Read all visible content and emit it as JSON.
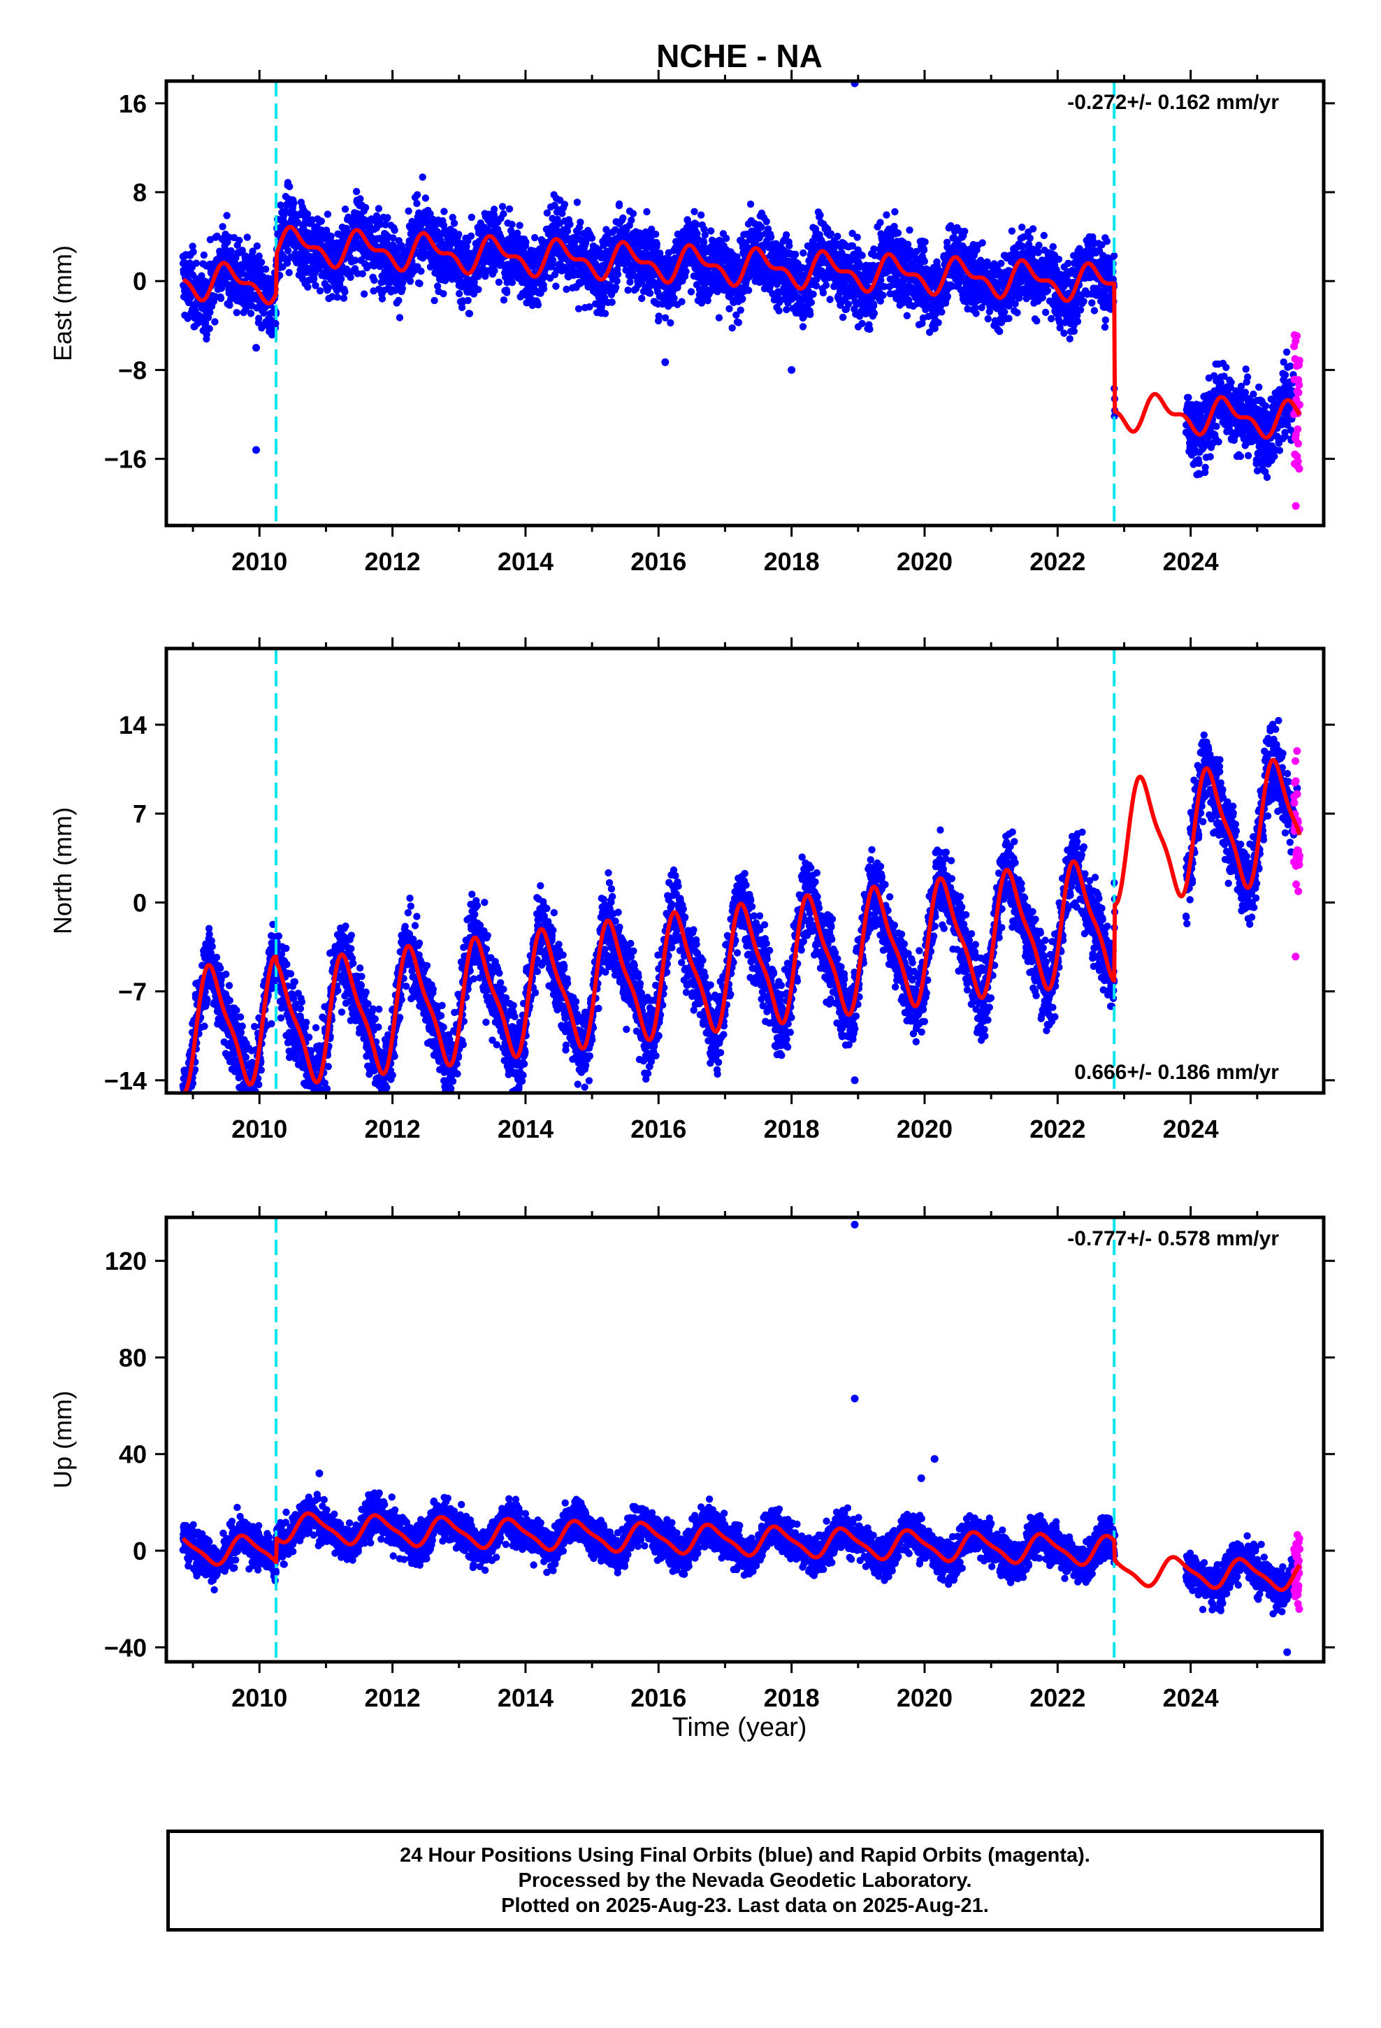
{
  "chart_data": {
    "type": "scatter",
    "title": "NCHE - NA",
    "xlabel": "Time (year)",
    "xlim": [
      2008.6,
      2026.0
    ],
    "xticks": [
      2010,
      2012,
      2014,
      2016,
      2018,
      2020,
      2022,
      2024
    ],
    "discontinuities": [
      2010.25,
      2022.85
    ],
    "last_final_orbit_year": 2025.55,
    "last_data_year": 2025.64,
    "colors": {
      "final": "#0000ff",
      "rapid": "#ff00ff",
      "model": "#ff0000",
      "discontinuity": "#00e5ee"
    },
    "panels": [
      {
        "name": "East",
        "ylabel": "East (mm)",
        "ylim": [
          -22,
          18
        ],
        "yticks": [
          16,
          8,
          0,
          -8,
          -16
        ],
        "rate": "-0.272+/- 0.162 mm/yr",
        "rate_position": "top-right",
        "model": {
          "rate_mm_per_yr": -0.272,
          "offset": -1.6,
          "annual_amp": 1.3,
          "annual_phase": 0.3,
          "semiannual_amp": 0.7,
          "steps": [
            {
              "year": 2010.25,
              "size": 3.5
            },
            {
              "year": 2022.85,
              "size": -11.5
            }
          ]
        },
        "scatter_noise": 1.6,
        "outliers": [
          [
            2018.95,
            17.8
          ],
          [
            2009.95,
            -15.2
          ],
          [
            2016.1,
            -7.3
          ],
          [
            2018.0,
            -8.0
          ],
          [
            2009.95,
            -6.0
          ]
        ]
      },
      {
        "name": "North",
        "ylabel": "North (mm)",
        "ylim": [
          -15,
          20
        ],
        "yticks": [
          14,
          7,
          0,
          -7,
          -14
        ],
        "rate": "0.666+/- 0.186 mm/yr",
        "rate_position": "bottom-right",
        "model": {
          "rate_mm_per_yr": 0.666,
          "offset": -6.0,
          "annual_amp": 4.4,
          "annual_phase": 0.05,
          "semiannual_amp": 1.2,
          "steps": [
            {
              "year": 2010.25,
              "size": -0.5
            },
            {
              "year": 2022.85,
              "size": 6.0
            }
          ]
        },
        "scatter_noise": 1.5,
        "outliers": [
          [
            2018.95,
            -14.0
          ],
          [
            2009.9,
            -13.8
          ],
          [
            2016.0,
            -10.5
          ],
          [
            2013.8,
            -9.8
          ],
          [
            2025.6,
            9.0
          ]
        ]
      },
      {
        "name": "Up",
        "ylabel": "Up (mm)",
        "ylim": [
          -46,
          138
        ],
        "yticks": [
          120,
          80,
          40,
          0,
          -40
        ],
        "rate": "-0.777+/- 0.578 mm/yr",
        "rate_position": "top-right",
        "model": {
          "rate_mm_per_yr": -0.777,
          "offset": -4.0,
          "annual_amp": 5.5,
          "annual_phase": 0.55,
          "semiannual_amp": 1.5,
          "steps": [
            {
              "year": 2010.25,
              "size": 10.0
            },
            {
              "year": 2022.85,
              "size": -8.0
            }
          ]
        },
        "scatter_noise": 4.0,
        "outliers": [
          [
            2018.95,
            135.0
          ],
          [
            2018.95,
            63.0
          ],
          [
            2020.15,
            38.0
          ],
          [
            2019.95,
            30.0
          ],
          [
            2010.9,
            32.0
          ],
          [
            2025.45,
            -42.0
          ]
        ]
      }
    ]
  },
  "footer": {
    "line1": "24 Hour Positions Using Final Orbits (blue) and Rapid Orbits (magenta).",
    "line2": "Processed by the Nevada Geodetic Laboratory.",
    "line3": "Plotted on 2025-Aug-23. Last data on 2025-Aug-21."
  }
}
